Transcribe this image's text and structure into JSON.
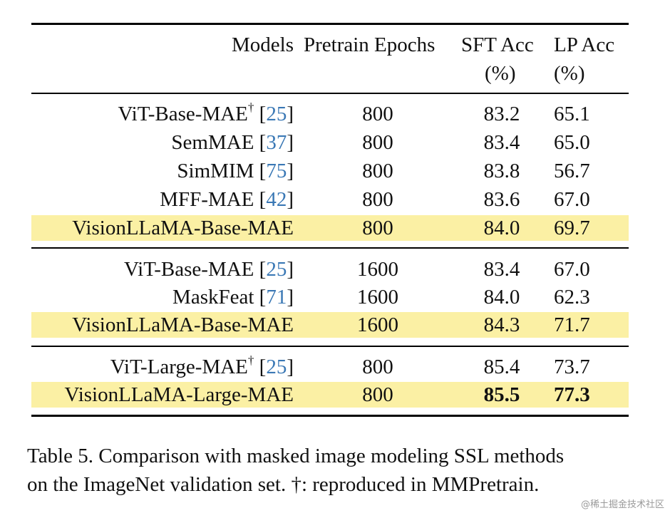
{
  "table": {
    "headers": {
      "models": "Models",
      "epochs": "Pretrain Epochs",
      "sft_line1": "SFT Acc",
      "sft_line2": "(%)",
      "lp_line1": "LP Acc",
      "lp_line2": "(%)"
    },
    "rows": [
      {
        "name": "ViT-Base-MAE",
        "dagger": "†",
        "ref": "25",
        "epochs": "800",
        "sft": "83.2",
        "lp": "65.1"
      },
      {
        "name": "SemMAE",
        "dagger": "",
        "ref": "37",
        "epochs": "800",
        "sft": "83.4",
        "lp": "65.0"
      },
      {
        "name": "SimMIM",
        "dagger": "",
        "ref": "75",
        "epochs": "800",
        "sft": "83.8",
        "lp": "56.7"
      },
      {
        "name": "MFF-MAE",
        "dagger": "",
        "ref": "42",
        "epochs": "800",
        "sft": "83.6",
        "lp": "67.0"
      },
      {
        "name": "VisionLLaMA-Base-MAE",
        "dagger": "",
        "ref": "",
        "epochs": "800",
        "sft": "84.0",
        "lp": "69.7",
        "highlight": true
      },
      {
        "name": "ViT-Base-MAE",
        "dagger": "",
        "ref": "25",
        "epochs": "1600",
        "sft": "83.4",
        "lp": "67.0"
      },
      {
        "name": "MaskFeat",
        "dagger": "",
        "ref": "71",
        "epochs": "1600",
        "sft": "84.0",
        "lp": "62.3"
      },
      {
        "name": "VisionLLaMA-Base-MAE",
        "dagger": "",
        "ref": "",
        "epochs": "1600",
        "sft": "84.3",
        "lp": "71.7",
        "highlight": true
      },
      {
        "name": "ViT-Large-MAE",
        "dagger": "†",
        "ref": "25",
        "epochs": "800",
        "sft": "85.4",
        "lp": "73.7"
      },
      {
        "name": "VisionLLaMA-Large-MAE",
        "dagger": "",
        "ref": "",
        "epochs": "800",
        "sft": "85.5",
        "lp": "77.3",
        "highlight": true,
        "bold": true
      }
    ]
  },
  "caption": {
    "line1": "Table 5. Comparison with masked image modeling SSL methods",
    "line2": "on the ImageNet validation set. †: reproduced in MMPretrain."
  },
  "watermark": "@稀土掘金技术社区",
  "colors": {
    "highlight": "#fbf0a4",
    "ref_link": "#3a78b5"
  }
}
